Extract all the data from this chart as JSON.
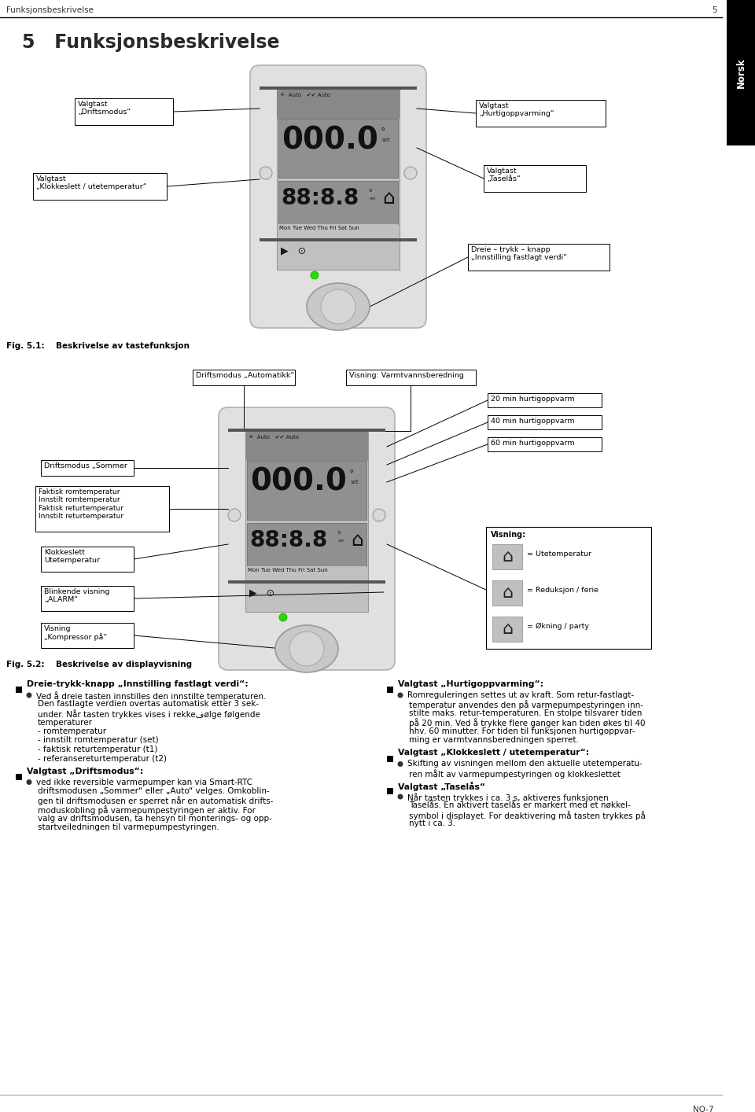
{
  "page_title": "Funksjonsbeskrivelse",
  "page_number": "5",
  "page_number_bottom": "NO-7",
  "chapter": "5   Funksjonsbeskrivelse",
  "sidebar_text": "Norsk",
  "fig1_caption": "Fig. 5.1:    Beskrivelse av tastefunksjon",
  "fig2_caption": "Fig. 5.2:    Beskrivelse av displayvisning",
  "fig2_visning_items": [
    "= Utetemperatur",
    "= Reduksjon / ferie",
    "= Økning / party"
  ],
  "bg_color": "#ffffff",
  "sidebar_bg": "#000000",
  "device_outer": "#d8d8d8",
  "device_screen_light": "#c8c8c8",
  "device_screen_top": "#999999",
  "device_digits_bg": "#888888",
  "device_second_bg": "#aaaaaa"
}
